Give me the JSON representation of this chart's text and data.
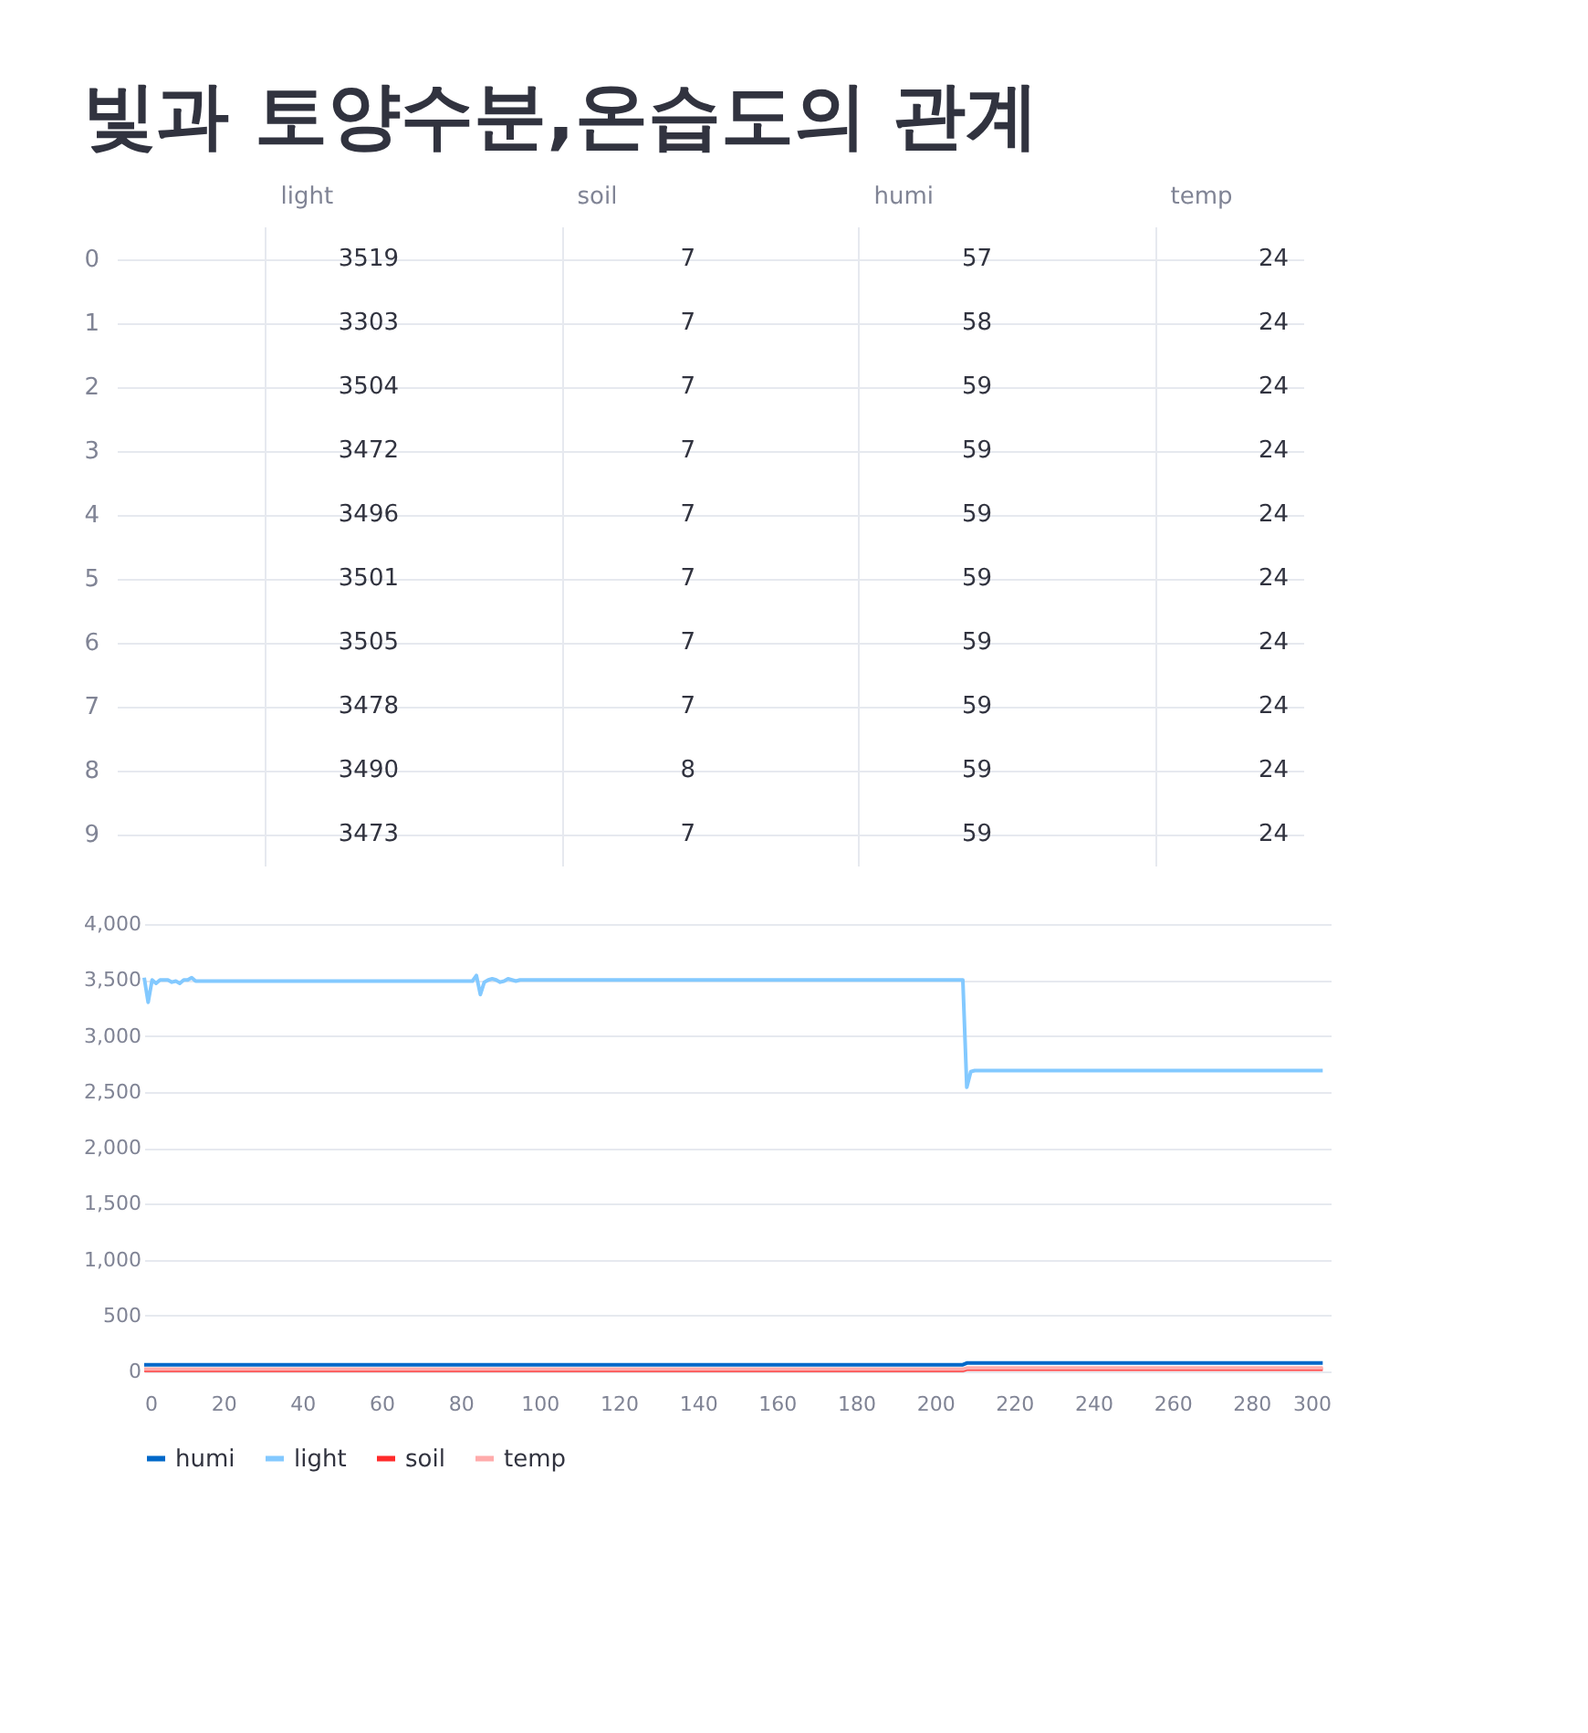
{
  "chart_data": [
    {
      "type": "heatmap",
      "title": "빛과 토양수분,온습도의 관계",
      "categories": [
        "light",
        "soil",
        "humi",
        "temp"
      ],
      "y_categories": [
        "0",
        "1",
        "2",
        "3",
        "4",
        "5",
        "6",
        "7",
        "8",
        "9"
      ],
      "data_labels": true,
      "cells": [
        [
          3519,
          7,
          57,
          24
        ],
        [
          3303,
          7,
          58,
          24
        ],
        [
          3504,
          7,
          59,
          24
        ],
        [
          3472,
          7,
          59,
          24
        ],
        [
          3496,
          7,
          59,
          24
        ],
        [
          3501,
          7,
          59,
          24
        ],
        [
          3505,
          7,
          59,
          24
        ],
        [
          3478,
          7,
          59,
          24
        ],
        [
          3490,
          8,
          59,
          24
        ],
        [
          3473,
          7,
          59,
          24
        ]
      ]
    },
    {
      "type": "line",
      "xlim": [
        0,
        300
      ],
      "xticks": [
        0,
        20,
        40,
        60,
        80,
        100,
        120,
        140,
        160,
        180,
        200,
        220,
        240,
        260,
        280,
        300
      ],
      "ylim": [
        0,
        4000
      ],
      "yticks": [
        0,
        500,
        {
          "value": 1000,
          "label": "1,000"
        },
        {
          "value": 1500,
          "label": "1,500"
        },
        {
          "value": 2000,
          "label": "2,000"
        },
        {
          "value": 2500,
          "label": "2,500"
        },
        {
          "value": 3000,
          "label": "3,000"
        },
        {
          "value": 3500,
          "label": "3,500"
        },
        {
          "value": 4000,
          "label": "4,000"
        }
      ],
      "grid": "y",
      "legend": "bottom",
      "series": [
        {
          "name": "humi",
          "color": "#0068c9",
          "x": [
            0,
            207,
            208,
            298
          ],
          "values": [
            60,
            60,
            75,
            75
          ]
        },
        {
          "name": "light",
          "color": "#83c9ff",
          "x": [
            0,
            1,
            2,
            3,
            4,
            5,
            6,
            7,
            8,
            9,
            10,
            11,
            12,
            13,
            14,
            83,
            84,
            85,
            86,
            87,
            88,
            89,
            90,
            91,
            92,
            93,
            94,
            95,
            96,
            207,
            208,
            209,
            210,
            298
          ],
          "values": [
            3520,
            3300,
            3500,
            3470,
            3500,
            3500,
            3500,
            3480,
            3490,
            3470,
            3500,
            3500,
            3520,
            3490,
            3490,
            3490,
            3540,
            3370,
            3480,
            3500,
            3510,
            3500,
            3480,
            3490,
            3510,
            3500,
            3490,
            3500,
            3500,
            3500,
            2540,
            2680,
            2690,
            2690
          ]
        },
        {
          "name": "soil",
          "color": "#ff2b2b",
          "x": [
            0,
            207,
            208,
            298
          ],
          "values": [
            10,
            10,
            20,
            20
          ]
        },
        {
          "name": "temp",
          "color": "#ffabab",
          "x": [
            0,
            207,
            208,
            298
          ],
          "values": [
            20,
            20,
            30,
            30
          ]
        }
      ]
    }
  ]
}
